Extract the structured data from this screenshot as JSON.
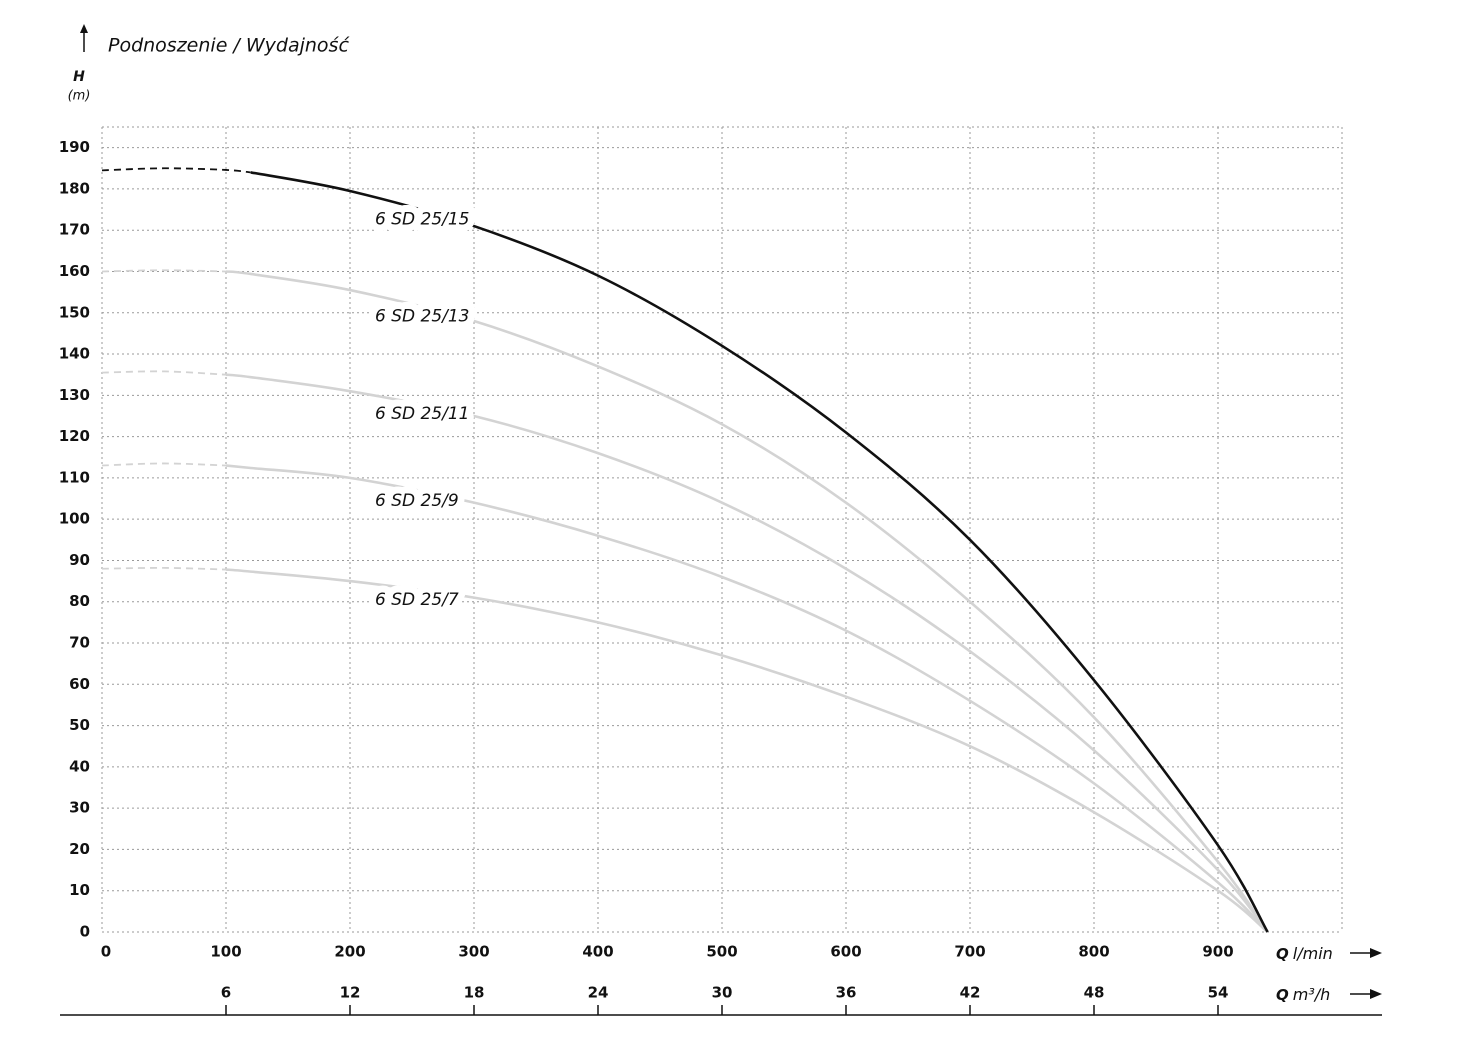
{
  "chart_data": {
    "type": "line",
    "title": "Podnoszenie / Wydajność",
    "ylabel": "H",
    "yunit": "(m)",
    "xlabel": {
      "symbol": "Q",
      "unit": "l/min"
    },
    "x2label": {
      "symbol": "Q",
      "unit": "m³/h"
    },
    "xlim": [
      0,
      1000
    ],
    "xticks": [
      0,
      100,
      200,
      300,
      400,
      500,
      600,
      700,
      800,
      900
    ],
    "x2lim": [
      0,
      60
    ],
    "x2ticks": [
      6,
      12,
      18,
      24,
      30,
      36,
      42,
      48,
      54
    ],
    "ylim": [
      0,
      195
    ],
    "yticks": [
      0,
      10,
      20,
      30,
      40,
      50,
      60,
      70,
      80,
      90,
      100,
      110,
      120,
      130,
      140,
      150,
      160,
      170,
      180,
      190
    ],
    "grid": true,
    "x": [
      0,
      50,
      100,
      120,
      200,
      300,
      400,
      500,
      600,
      700,
      800,
      900,
      940
    ],
    "series": [
      {
        "name": "6 SD 25/7",
        "color": "#d3d3d3",
        "dashed_until": 100,
        "values": [
          88,
          88.2,
          87.8,
          87.3,
          85,
          81,
          75,
          67,
          57,
          45,
          29,
          10,
          0
        ]
      },
      {
        "name": "6 SD 25/9",
        "color": "#d3d3d3",
        "dashed_until": 100,
        "values": [
          113,
          113.5,
          113,
          112.4,
          110,
          104,
          96,
          86,
          73,
          56,
          36,
          12,
          0
        ]
      },
      {
        "name": "6 SD 25/11",
        "color": "#d3d3d3",
        "dashed_until": 100,
        "values": [
          135.5,
          135.8,
          135,
          134.4,
          131,
          125,
          116,
          104,
          88,
          68,
          44,
          15,
          0
        ]
      },
      {
        "name": "6 SD 25/13",
        "color": "#d3d3d3",
        "dashed_until": 100,
        "values": [
          160,
          160.3,
          160,
          159.4,
          155.5,
          148,
          137,
          123,
          104,
          80,
          52,
          17,
          0
        ]
      },
      {
        "name": "6 SD 25/15",
        "color": "#111111",
        "dashed_until": 120,
        "values": [
          184.5,
          185,
          184.6,
          184,
          179.5,
          171,
          159,
          142,
          121,
          95,
          61,
          21,
          0
        ]
      }
    ]
  }
}
